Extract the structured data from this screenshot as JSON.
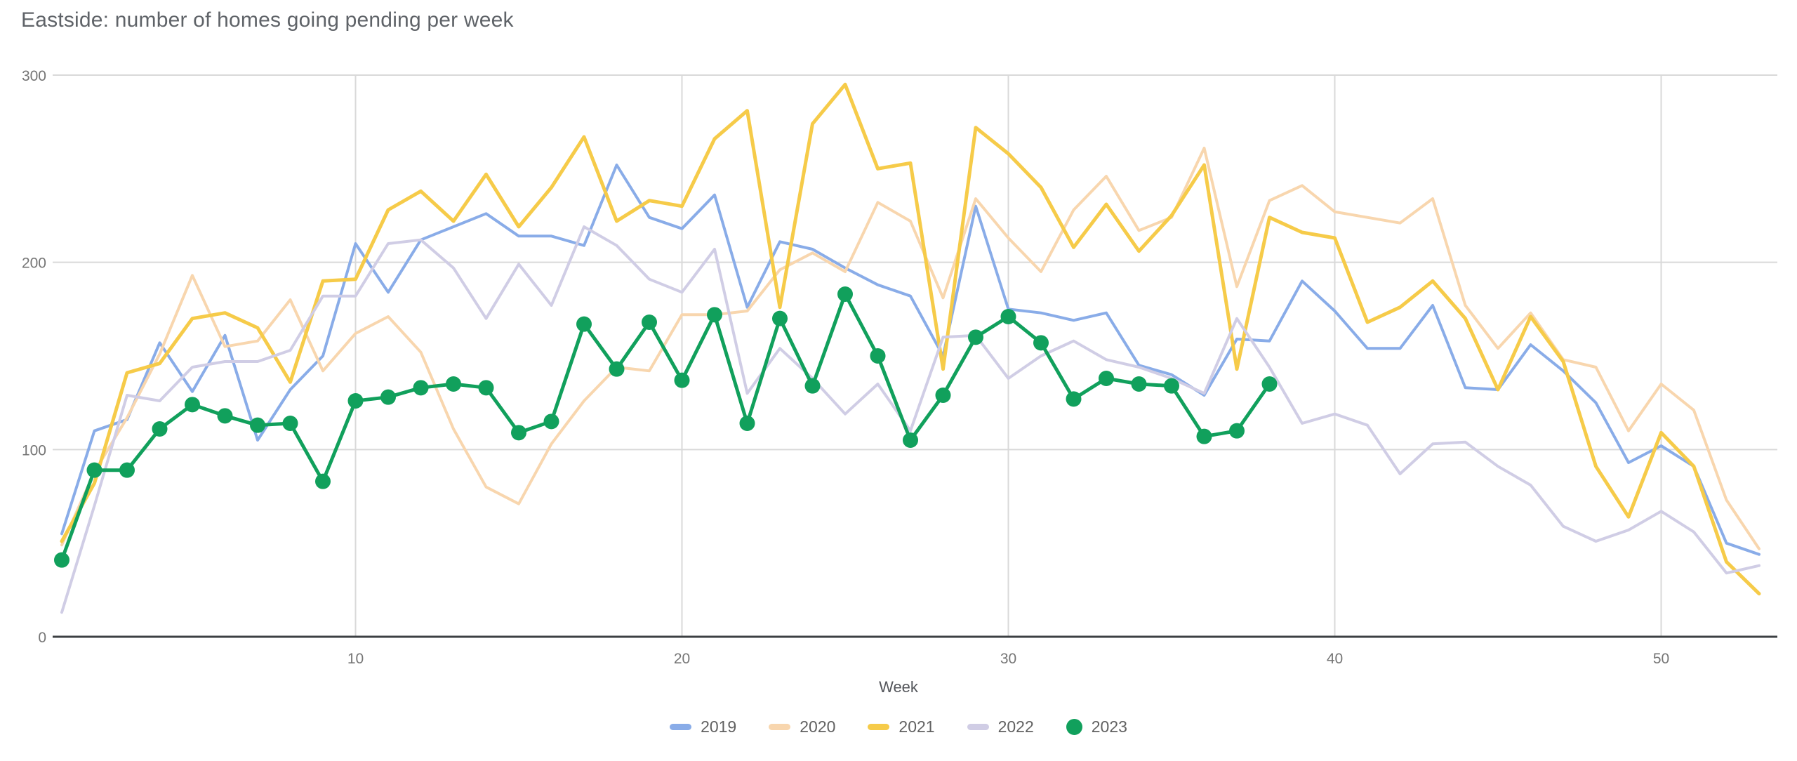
{
  "title": "Eastside: number of homes going pending per week",
  "chart_data": {
    "type": "line",
    "title": "Eastside: number of homes going pending per week",
    "xlabel": "Week",
    "ylabel": "",
    "xlim": [
      1,
      53
    ],
    "ylim": [
      0,
      300
    ],
    "x_ticks": [
      10,
      20,
      30,
      40,
      50
    ],
    "y_ticks": [
      0,
      100,
      200,
      300
    ],
    "grid": true,
    "legend_position": "bottom",
    "x_start_week": 1,
    "series": [
      {
        "name": "2019",
        "color": "#89ACE8",
        "marker": "line",
        "line_width": 4,
        "values": [
          55,
          110,
          116,
          157,
          131,
          161,
          105,
          132,
          150,
          210,
          184,
          212,
          219,
          226,
          214,
          214,
          209,
          252,
          224,
          218,
          236,
          176,
          211,
          207,
          197,
          188,
          182,
          150,
          230,
          175,
          173,
          169,
          173,
          145,
          140,
          129,
          159,
          158,
          190,
          174,
          154,
          154,
          177,
          133,
          132,
          156,
          142,
          125,
          93,
          102,
          91,
          50,
          44
        ]
      },
      {
        "name": "2020",
        "color": "#F8D6AE",
        "marker": "line",
        "line_width": 4,
        "values": [
          49,
          88,
          117,
          151,
          193,
          155,
          158,
          180,
          142,
          162,
          171,
          152,
          111,
          80,
          71,
          103,
          126,
          144,
          142,
          172,
          172,
          174,
          196,
          205,
          195,
          232,
          222,
          181,
          234,
          213,
          195,
          228,
          246,
          217,
          224,
          261,
          187,
          233,
          241,
          227,
          224,
          221,
          234,
          177,
          154,
          173,
          148,
          144,
          110,
          135,
          121,
          73,
          47
        ]
      },
      {
        "name": "2021",
        "color": "#F6CB49",
        "marker": "line",
        "line_width": 5,
        "values": [
          51,
          82,
          141,
          146,
          170,
          173,
          165,
          136,
          190,
          191,
          228,
          238,
          222,
          247,
          219,
          240,
          267,
          222,
          233,
          230,
          266,
          281,
          176,
          274,
          295,
          250,
          253,
          143,
          272,
          258,
          240,
          208,
          231,
          206,
          225,
          252,
          143,
          224,
          216,
          213,
          168,
          176,
          190,
          170,
          132,
          171,
          147,
          91,
          64,
          109,
          91,
          40,
          23
        ]
      },
      {
        "name": "2022",
        "color": "#D0CDE5",
        "marker": "line",
        "line_width": 4,
        "values": [
          13,
          70,
          129,
          126,
          144,
          147,
          147,
          153,
          182,
          182,
          210,
          212,
          197,
          170,
          199,
          177,
          219,
          209,
          191,
          184,
          207,
          130,
          154,
          138,
          119,
          135,
          110,
          160,
          161,
          138,
          150,
          158,
          148,
          144,
          138,
          130,
          170,
          144,
          114,
          119,
          113,
          87,
          103,
          104,
          91,
          81,
          59,
          51,
          57,
          67,
          56,
          34,
          38
        ]
      },
      {
        "name": "2023",
        "color": "#11A05C",
        "marker": "circle",
        "line_width": 5,
        "dot_radius": 11,
        "values": [
          41,
          89,
          89,
          111,
          124,
          118,
          113,
          114,
          83,
          126,
          128,
          133,
          135,
          133,
          109,
          115,
          167,
          143,
          168,
          137,
          172,
          114,
          170,
          134,
          183,
          150,
          105,
          129,
          160,
          171,
          157,
          127,
          138,
          135,
          134,
          107,
          110,
          135
        ]
      }
    ]
  },
  "style": {
    "gridline_color": "#d9d9d9",
    "axis_line_color": "#3c4043",
    "tick_label_color": "#757575",
    "title_color": "#5f6368",
    "background": "#ffffff"
  }
}
